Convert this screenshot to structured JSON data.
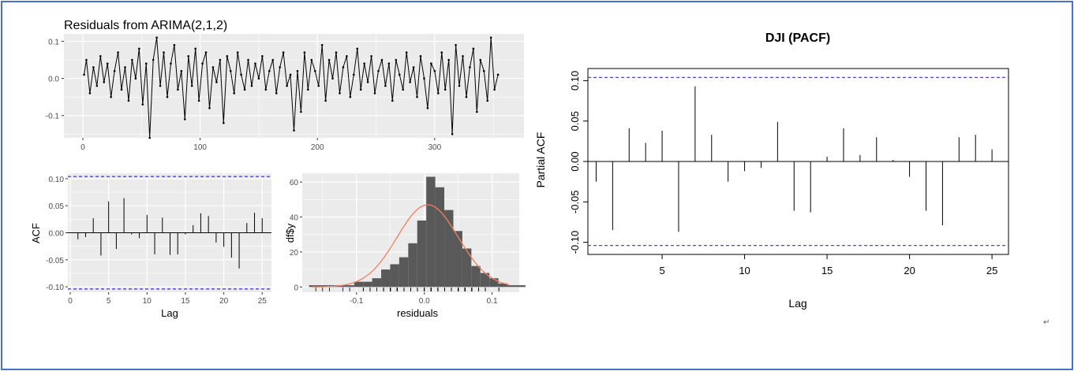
{
  "chart_data": [
    {
      "type": "line",
      "title": "Residuals from ARIMA(2,1,2)",
      "xlim": [
        0,
        360
      ],
      "ylim": [
        -0.16,
        0.12
      ],
      "x_ticks": [
        "0",
        "100",
        "200",
        "300"
      ],
      "y_ticks": [
        "0.1",
        "0.0",
        "-0.1"
      ],
      "grid": true,
      "note": "approx. 355 residual observations; values estimated by eye",
      "series": [
        {
          "x": [
            1,
            3,
            6,
            9,
            12,
            15,
            18,
            21,
            24,
            27,
            30,
            33,
            36,
            39,
            42,
            45,
            48,
            51,
            54,
            57,
            60,
            63,
            66,
            69,
            72,
            75,
            78,
            81,
            84,
            87,
            90,
            93,
            96,
            99,
            102,
            105,
            108,
            111,
            114,
            117,
            120,
            123,
            126,
            129,
            132,
            135,
            138,
            141,
            144,
            147,
            150,
            153,
            156,
            159,
            162,
            165,
            168,
            171,
            174,
            177,
            180,
            183,
            186,
            189,
            192,
            195,
            198,
            201,
            204,
            207,
            210,
            213,
            216,
            219,
            222,
            225,
            228,
            231,
            234,
            237,
            240,
            243,
            246,
            249,
            252,
            255,
            258,
            261,
            264,
            267,
            270,
            273,
            276,
            279,
            282,
            285,
            288,
            291,
            294,
            297,
            300,
            303,
            306,
            309,
            312,
            315,
            318,
            321,
            324,
            327,
            330,
            333,
            336,
            339,
            342,
            345,
            348,
            351,
            354
          ],
          "values": [
            0.01,
            0.05,
            -0.04,
            0.03,
            -0.02,
            0.06,
            -0.01,
            0.04,
            -0.05,
            0.02,
            0.07,
            -0.03,
            0.03,
            -0.06,
            0.05,
            0.0,
            0.08,
            -0.07,
            0.04,
            -0.16,
            0.05,
            0.11,
            -0.02,
            0.07,
            -0.05,
            0.04,
            0.09,
            -0.03,
            0.02,
            -0.11,
            0.06,
            -0.02,
            0.08,
            -0.06,
            0.04,
            0.07,
            -0.08,
            0.03,
            -0.01,
            0.05,
            -0.12,
            0.06,
            0.02,
            -0.04,
            0.07,
            0.01,
            -0.03,
            0.05,
            -0.02,
            0.04,
            0.0,
            0.06,
            -0.03,
            0.02,
            0.05,
            -0.04,
            0.03,
            0.07,
            -0.02,
            0.01,
            -0.14,
            0.02,
            -0.09,
            0.07,
            -0.03,
            0.05,
            0.02,
            -0.02,
            0.09,
            -0.06,
            0.05,
            0.0,
            0.07,
            -0.04,
            0.03,
            0.06,
            -0.05,
            0.01,
            0.08,
            -0.03,
            0.04,
            -0.01,
            0.06,
            -0.04,
            0.02,
            0.05,
            -0.02,
            0.04,
            -0.06,
            0.05,
            0.01,
            -0.03,
            0.07,
            -0.01,
            0.03,
            -0.05,
            0.06,
            0.0,
            -0.08,
            0.04,
            0.02,
            -0.04,
            0.07,
            -0.03,
            0.05,
            -0.15,
            0.09,
            -0.02,
            0.06,
            -0.05,
            0.03,
            0.08,
            -0.09,
            0.05,
            0.02,
            -0.06,
            0.11,
            -0.03,
            0.01
          ]
        }
      ]
    },
    {
      "type": "bar",
      "ylabel": "ACF",
      "xlabel": "Lag",
      "xlim": [
        0,
        26
      ],
      "ylim": [
        -0.11,
        0.11
      ],
      "x_ticks": [
        "0",
        "5",
        "10",
        "15",
        "20",
        "25"
      ],
      "y_ticks": [
        "0.10",
        "0.05",
        "0.00",
        "-0.05",
        "-0.10"
      ],
      "grid": true,
      "confidence_bound": 0.104,
      "x": [
        1,
        2,
        3,
        4,
        5,
        6,
        7,
        8,
        9,
        10,
        11,
        12,
        13,
        14,
        15,
        16,
        17,
        18,
        19,
        20,
        21,
        22,
        23,
        24,
        25
      ],
      "values": [
        -0.012,
        -0.008,
        0.027,
        -0.042,
        0.058,
        -0.03,
        0.064,
        -0.003,
        -0.01,
        0.033,
        -0.04,
        0.028,
        -0.041,
        -0.04,
        -0.003,
        0.014,
        0.036,
        0.031,
        -0.018,
        -0.026,
        -0.046,
        -0.066,
        0.018,
        0.037,
        0.027
      ]
    },
    {
      "type": "bar",
      "ylabel": "df$y",
      "xlabel": "residuals",
      "xlim": [
        -0.18,
        0.14
      ],
      "ylim": [
        -3,
        65
      ],
      "x_ticks": [
        "-0.1",
        "0.0",
        "0.1"
      ],
      "y_ticks": [
        "60",
        "40",
        "20",
        "0"
      ],
      "grid": true,
      "bins": {
        "start": -0.17,
        "width": 0.0133,
        "counts": [
          1,
          1,
          1,
          1,
          1,
          3,
          3,
          5,
          10,
          13,
          17,
          25,
          38,
          63,
          57,
          44,
          32,
          22,
          12,
          8,
          5,
          2,
          1,
          1
        ]
      },
      "normal_curve": {
        "mean": 0.005,
        "sd": 0.045,
        "peak": 47
      }
    },
    {
      "type": "bar",
      "title": "DJI (PACF)",
      "ylabel": "Partial ACF",
      "xlabel": "Lag",
      "xlim": [
        0.5,
        26
      ],
      "ylim": [
        -0.115,
        0.115
      ],
      "x_ticks": [
        "5",
        "10",
        "15",
        "20",
        "25"
      ],
      "y_ticks": [
        "0.10",
        "0.05",
        "0.00",
        "-0.05",
        "-0.10"
      ],
      "grid": false,
      "confidence_bound": 0.104,
      "x": [
        1,
        2,
        3,
        4,
        5,
        6,
        7,
        8,
        9,
        10,
        11,
        12,
        13,
        14,
        15,
        16,
        17,
        18,
        19,
        20,
        21,
        22,
        23,
        24,
        25
      ],
      "values": [
        -0.025,
        -0.085,
        0.041,
        0.023,
        0.038,
        -0.087,
        0.093,
        0.033,
        -0.025,
        -0.012,
        -0.008,
        0.049,
        -0.061,
        -0.063,
        0.006,
        0.041,
        0.008,
        0.03,
        0.002,
        -0.019,
        -0.061,
        -0.079,
        0.03,
        0.033,
        0.015
      ]
    }
  ],
  "colors": {
    "panel_bg": "#ebebeb",
    "grid": "#ffffff",
    "bound": "#3333cc",
    "curve": "#f08060",
    "bars": "#595959",
    "frame": "#4472c4"
  },
  "paragraph_mark": "↵"
}
